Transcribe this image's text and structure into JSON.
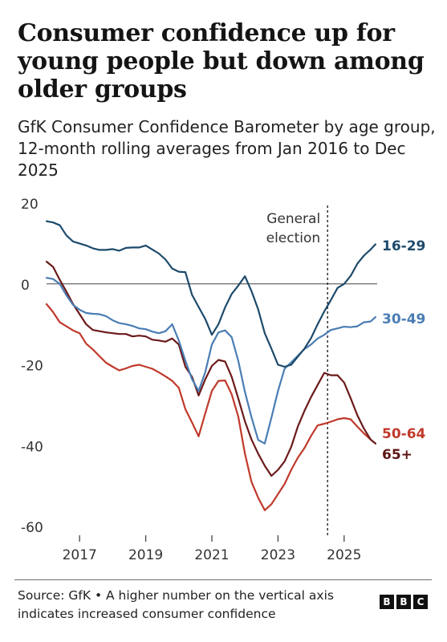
{
  "title": "Consumer confidence up for young people but down among older groups",
  "subtitle": "GfK Consumer Confidence Barometer by age group, 12-month rolling averages from Jan 2016 to Dec 2025",
  "source": "Source: GfK • A higher number on the vertical axis indicates increased consumer confidence",
  "logo": [
    "B",
    "B",
    "C"
  ],
  "chart_data": {
    "type": "line",
    "xlim": [
      2016.0,
      2026.0
    ],
    "ylim": [
      -60,
      20
    ],
    "yticks": [
      20,
      0,
      -20,
      -40,
      -60
    ],
    "ytick_labels": [
      "20",
      "0",
      "-20",
      "-40",
      "-60"
    ],
    "xticks": [
      2017,
      2019,
      2021,
      2023,
      2025
    ],
    "xtick_labels": [
      "2017",
      "2019",
      "2021",
      "2023",
      "2025"
    ],
    "grid": false,
    "zero_line": true,
    "annotation": {
      "x": 2024.5,
      "label_lines": [
        "General",
        "election"
      ]
    },
    "series": [
      {
        "name": "16-29",
        "color": "#1d4a6b",
        "label_color": "#1d4a6b",
        "x": [
          2016.0,
          2016.2,
          2016.4,
          2016.6,
          2016.8,
          2017.0,
          2017.2,
          2017.4,
          2017.6,
          2017.8,
          2018.0,
          2018.2,
          2018.4,
          2018.6,
          2018.8,
          2019.0,
          2019.2,
          2019.4,
          2019.6,
          2019.8,
          2020.0,
          2020.2,
          2020.4,
          2020.6,
          2020.8,
          2021.0,
          2021.2,
          2021.4,
          2021.6,
          2021.8,
          2022.0,
          2022.2,
          2022.4,
          2022.6,
          2022.8,
          2023.0,
          2023.2,
          2023.4,
          2023.6,
          2023.8,
          2024.0,
          2024.2,
          2024.4,
          2024.6,
          2024.8,
          2025.0,
          2025.2,
          2025.4,
          2025.6,
          2025.8,
          2025.95
        ],
        "y": [
          15.5,
          15.2,
          14.5,
          12,
          10.5,
          10,
          9.5,
          8.8,
          8.4,
          8.4,
          8.6,
          8.2,
          8.9,
          9,
          9,
          9.5,
          8.5,
          7.5,
          6,
          3.8,
          3,
          2.9,
          -2.7,
          -5.7,
          -8.7,
          -12.6,
          -10,
          -5.8,
          -2.5,
          -0.4,
          1.9,
          -1.8,
          -6.3,
          -12.2,
          -16,
          -20,
          -20.5,
          -20,
          -18,
          -16,
          -13.4,
          -10,
          -6.8,
          -4,
          -1,
          0,
          2,
          5,
          7,
          8.5,
          9.8
        ]
      },
      {
        "name": "30-49",
        "color": "#4a7db3",
        "label_color": "#4a7db3",
        "x": [
          2016.0,
          2016.2,
          2016.4,
          2016.6,
          2016.8,
          2017.0,
          2017.2,
          2017.4,
          2017.6,
          2017.8,
          2018.0,
          2018.2,
          2018.4,
          2018.6,
          2018.8,
          2019.0,
          2019.2,
          2019.4,
          2019.6,
          2019.8,
          2020.0,
          2020.2,
          2020.4,
          2020.6,
          2020.8,
          2021.0,
          2021.2,
          2021.4,
          2021.6,
          2021.8,
          2022.0,
          2022.2,
          2022.4,
          2022.6,
          2022.8,
          2023.0,
          2023.2,
          2023.4,
          2023.6,
          2023.8,
          2024.0,
          2024.2,
          2024.4,
          2024.6,
          2024.8,
          2025.0,
          2025.2,
          2025.4,
          2025.6,
          2025.8,
          2025.95
        ],
        "y": [
          1.5,
          1.2,
          0,
          -2.8,
          -5.2,
          -6.4,
          -7.2,
          -7.4,
          -7.5,
          -8,
          -9,
          -9.7,
          -10,
          -10.4,
          -11,
          -11.2,
          -11.8,
          -12.2,
          -11.7,
          -10,
          -14,
          -19,
          -23.6,
          -26.5,
          -21.8,
          -15,
          -12,
          -11.5,
          -13.2,
          -19.1,
          -26.7,
          -33,
          -38.6,
          -39.5,
          -33.1,
          -26.5,
          -21,
          -19.4,
          -17.8,
          -16.1,
          -15,
          -13.5,
          -12.6,
          -11.4,
          -11,
          -10.6,
          -10.7,
          -10.5,
          -9.5,
          -9.3,
          -8.2
        ]
      },
      {
        "name": "50-64",
        "color": "#c0392b",
        "label_color": "#c0392b",
        "x": [
          2016.0,
          2016.2,
          2016.4,
          2016.6,
          2016.8,
          2017.0,
          2017.2,
          2017.4,
          2017.6,
          2017.8,
          2018.0,
          2018.2,
          2018.4,
          2018.6,
          2018.8,
          2019.0,
          2019.2,
          2019.4,
          2019.6,
          2019.8,
          2020.0,
          2020.2,
          2020.4,
          2020.6,
          2020.8,
          2021.0,
          2021.2,
          2021.4,
          2021.6,
          2021.8,
          2022.0,
          2022.2,
          2022.4,
          2022.6,
          2022.8,
          2023.0,
          2023.2,
          2023.4,
          2023.6,
          2023.8,
          2024.0,
          2024.2,
          2024.4,
          2024.6,
          2024.8,
          2025.0,
          2025.2,
          2025.4,
          2025.6,
          2025.8,
          2025.95
        ],
        "y": [
          -5,
          -7,
          -9.5,
          -10.5,
          -11.5,
          -12.2,
          -14.8,
          -16.2,
          -17.9,
          -19.5,
          -20.5,
          -21.4,
          -20.9,
          -20.3,
          -20,
          -20.5,
          -21,
          -21.9,
          -22.9,
          -24,
          -25.7,
          -31,
          -34.3,
          -37.7,
          -32,
          -26.5,
          -24,
          -23.9,
          -27.3,
          -32.9,
          -42,
          -49,
          -52.9,
          -56,
          -54.5,
          -52,
          -49.5,
          -46,
          -43,
          -40.6,
          -37.6,
          -35,
          -34.6,
          -34.1,
          -33.5,
          -33.2,
          -33.5,
          -35.3,
          -37,
          -38.5,
          -39.5
        ]
      },
      {
        "name": "65+",
        "color": "#6b1a1a",
        "label_color": "#5c1414",
        "x": [
          2016.0,
          2016.2,
          2016.4,
          2016.6,
          2016.8,
          2017.0,
          2017.2,
          2017.4,
          2017.6,
          2017.8,
          2018.0,
          2018.2,
          2018.4,
          2018.6,
          2018.8,
          2019.0,
          2019.2,
          2019.4,
          2019.6,
          2019.8,
          2020.0,
          2020.2,
          2020.4,
          2020.6,
          2020.8,
          2021.0,
          2021.2,
          2021.4,
          2021.6,
          2021.8,
          2022.0,
          2022.2,
          2022.4,
          2022.6,
          2022.8,
          2023.0,
          2023.2,
          2023.4,
          2023.6,
          2023.8,
          2024.0,
          2024.2,
          2024.4,
          2024.6,
          2024.8,
          2025.0,
          2025.2,
          2025.4,
          2025.6,
          2025.8,
          2025.95
        ],
        "y": [
          5.5,
          4.2,
          1,
          -1.9,
          -5,
          -7.5,
          -10,
          -11.4,
          -11.7,
          -12,
          -12.2,
          -12.4,
          -12.4,
          -13,
          -12.8,
          -13,
          -13.8,
          -14,
          -14.3,
          -13.5,
          -15,
          -20.5,
          -23,
          -27.6,
          -23.6,
          -20.3,
          -18.8,
          -19.2,
          -23,
          -28.4,
          -34,
          -38.5,
          -42,
          -45,
          -47.5,
          -46,
          -43.9,
          -40.3,
          -35.3,
          -31.4,
          -28,
          -25,
          -22,
          -22.6,
          -22.6,
          -24.4,
          -28.3,
          -32.5,
          -35.8,
          -38.5,
          -39.5
        ]
      }
    ]
  }
}
